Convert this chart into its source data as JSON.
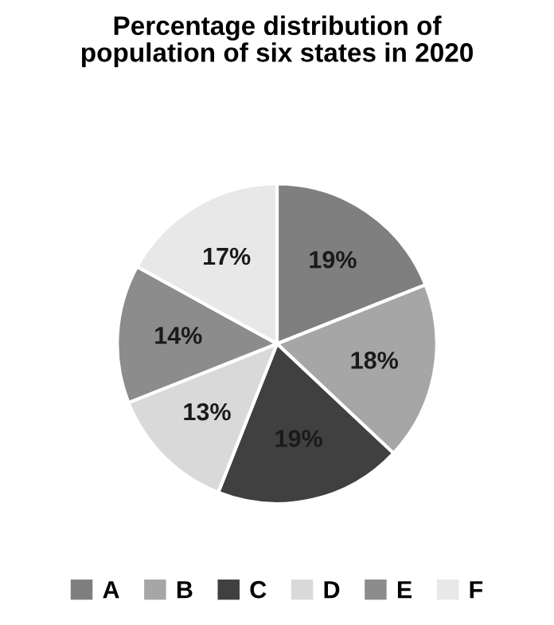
{
  "chart_data": {
    "type": "pie",
    "title": "Percentage distribution of\npopulation of six states in 2020",
    "categories": [
      "A",
      "B",
      "C",
      "D",
      "E",
      "F"
    ],
    "values": [
      19,
      18,
      19,
      13,
      14,
      17
    ],
    "colors": [
      "#7f7f7f",
      "#a6a6a6",
      "#404040",
      "#d9d9d9",
      "#8c8c8c",
      "#e8e8e8"
    ],
    "value_labels": [
      "19%",
      "18%",
      "19%",
      "13%",
      "14%",
      "17%"
    ],
    "legend": "bottom"
  }
}
